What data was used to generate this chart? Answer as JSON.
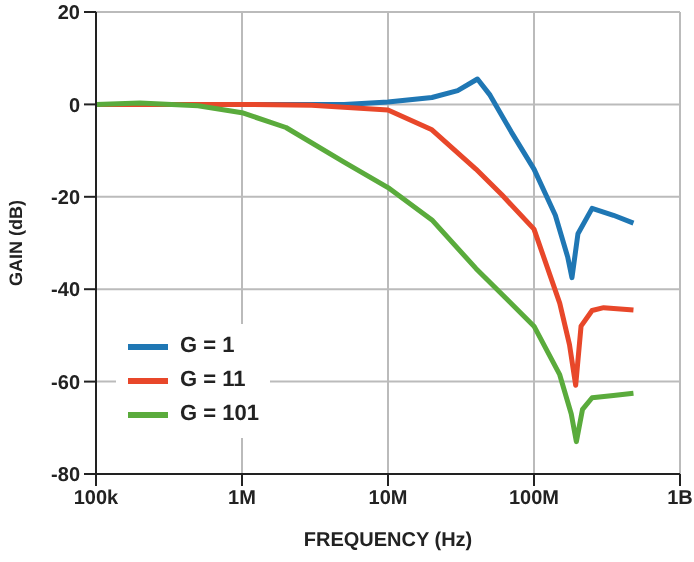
{
  "chart_data": {
    "type": "line",
    "xlabel": "FREQUENCY (Hz)",
    "ylabel": "GAIN (dB)",
    "log": "x",
    "xlim": [
      100000,
      1000000000
    ],
    "xticks": [
      {
        "value": 100000,
        "label": "100k"
      },
      {
        "value": 1000000,
        "label": "1M"
      },
      {
        "value": 10000000,
        "label": "10M"
      },
      {
        "value": 100000000,
        "label": "100M"
      },
      {
        "value": 1000000000,
        "label": "1B"
      }
    ],
    "ylim": [
      -80,
      20
    ],
    "yticks": [
      -80,
      -60,
      -40,
      -20,
      0,
      20
    ],
    "grid": true,
    "legend": "bottom left",
    "marker": "none",
    "line_style": "solid",
    "series": [
      {
        "name": "G = 1",
        "color": "#1f77b4",
        "x": [
          100000,
          1000000,
          5000000,
          10000000,
          20000000,
          30000000,
          41000000,
          50000000,
          70000000,
          100000000,
          140000000,
          170000000,
          182000000,
          200000000,
          250000000,
          350000000,
          480000000
        ],
        "values": [
          0,
          0,
          0,
          0.5,
          1.5,
          3,
          5.5,
          2,
          -6,
          -14,
          -24,
          -33,
          -37.5,
          -28,
          -22.5,
          -24,
          -25.7
        ]
      },
      {
        "name": "G = 11",
        "color": "#e8472a",
        "x": [
          100000,
          1000000,
          3000000,
          10000000,
          20000000,
          40000000,
          60000000,
          100000000,
          150000000,
          175000000,
          193000000,
          210000000,
          250000000,
          300000000,
          480000000
        ],
        "values": [
          0,
          0,
          -0.2,
          -1.2,
          -5.5,
          -14,
          -19.5,
          -27,
          -43,
          -52,
          -60.8,
          -48,
          -44.6,
          -44,
          -44.5
        ]
      },
      {
        "name": "G = 101",
        "color": "#5aab3c",
        "x": [
          100000,
          200000,
          500000,
          1000000,
          2000000,
          5000000,
          10000000,
          20000000,
          40000000,
          100000000,
          150000000,
          180000000,
          195000000,
          215000000,
          250000000,
          350000000,
          480000000
        ],
        "values": [
          0,
          0.3,
          -0.3,
          -1.8,
          -5,
          -12.5,
          -18,
          -25,
          -35.5,
          -48,
          -58.5,
          -67,
          -73,
          -66,
          -63.5,
          -63,
          -62.5
        ]
      }
    ]
  }
}
